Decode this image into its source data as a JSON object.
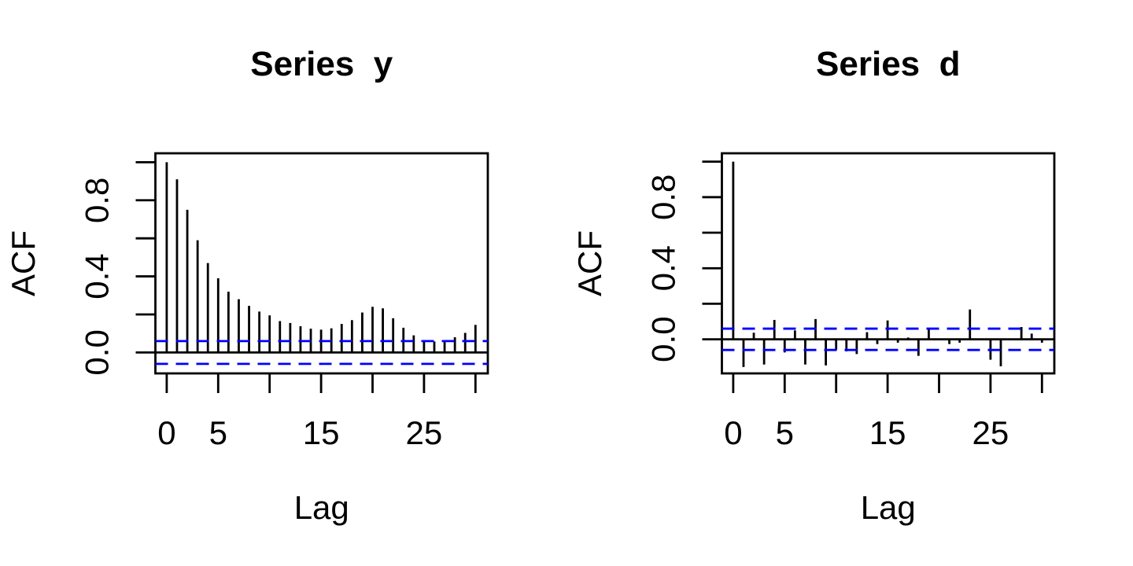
{
  "figure": {
    "background": "#ffffff",
    "bar_color": "#000000",
    "axis_color": "#000000",
    "band_color": "#0000ff"
  },
  "chart_data": [
    {
      "type": "bar",
      "title": "Series  y",
      "xlabel": "Lag",
      "ylabel": "ACF",
      "x": [
        0,
        1,
        2,
        3,
        4,
        5,
        6,
        7,
        8,
        9,
        10,
        11,
        12,
        13,
        14,
        15,
        16,
        17,
        18,
        19,
        20,
        21,
        22,
        23,
        24,
        25,
        26,
        27,
        28,
        29,
        30
      ],
      "values": [
        1.0,
        0.91,
        0.75,
        0.59,
        0.47,
        0.39,
        0.32,
        0.28,
        0.245,
        0.215,
        0.195,
        0.165,
        0.155,
        0.138,
        0.125,
        0.12,
        0.127,
        0.15,
        0.17,
        0.21,
        0.24,
        0.232,
        0.18,
        0.13,
        0.09,
        0.062,
        0.058,
        0.055,
        0.08,
        0.103,
        0.145
      ],
      "conf_band": 0.06,
      "xlim": [
        -1.1,
        31.2
      ],
      "ylim": [
        -0.11,
        1.047
      ],
      "x_ticks": [
        0,
        5,
        10,
        15,
        20,
        25,
        30
      ],
      "x_tick_labels": [
        "0",
        "5",
        "",
        "15",
        "",
        "25",
        ""
      ],
      "y_ticks": [
        0,
        0.2,
        0.4,
        0.6,
        0.8,
        1.0
      ],
      "y_tick_labels": [
        "0.0",
        "",
        "0.4",
        "",
        "0.8",
        ""
      ],
      "grid": false,
      "legend": null
    },
    {
      "type": "bar",
      "title": "Series  d",
      "xlabel": "Lag",
      "ylabel": "ACF",
      "x": [
        0,
        1,
        2,
        3,
        4,
        5,
        6,
        7,
        8,
        9,
        10,
        11,
        12,
        13,
        14,
        15,
        16,
        17,
        18,
        19,
        20,
        21,
        22,
        23,
        24,
        25,
        26,
        27,
        28,
        29,
        30
      ],
      "values": [
        1.0,
        -0.156,
        0.037,
        -0.142,
        0.109,
        -0.074,
        0.05,
        -0.142,
        0.114,
        -0.147,
        -0.059,
        -0.068,
        -0.083,
        0.04,
        -0.027,
        0.106,
        -0.019,
        0.01,
        -0.093,
        0.059,
        -0.005,
        -0.027,
        -0.019,
        0.168,
        0.005,
        -0.115,
        -0.152,
        -0.005,
        0.069,
        0.032,
        -0.019
      ],
      "conf_band": 0.06,
      "xlim": [
        -1.1,
        31.2
      ],
      "ylim": [
        -0.192,
        1.047
      ],
      "x_ticks": [
        0,
        5,
        10,
        15,
        20,
        25,
        30
      ],
      "x_tick_labels": [
        "0",
        "5",
        "",
        "15",
        "",
        "25",
        ""
      ],
      "y_ticks": [
        0,
        0.2,
        0.4,
        0.6,
        0.8,
        1.0
      ],
      "y_tick_labels": [
        "0.0",
        "",
        "0.4",
        "",
        "0.8",
        ""
      ],
      "grid": false,
      "legend": null
    }
  ]
}
